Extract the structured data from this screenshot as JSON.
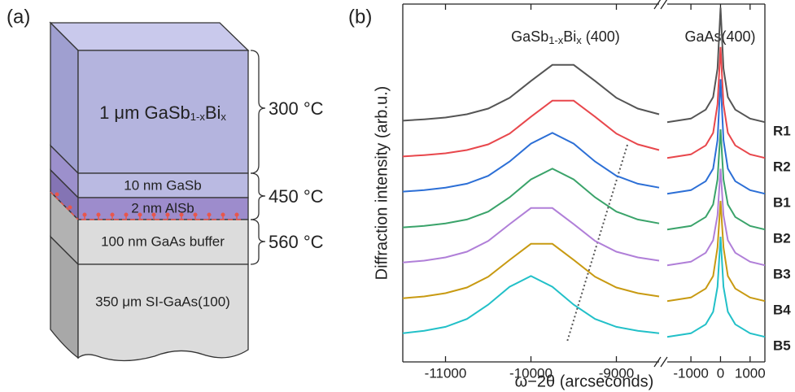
{
  "panel_a": {
    "label": "(a)",
    "gasbbi_layer": [
      "1 μm GaSb",
      "1-x",
      "Bi",
      "x"
    ],
    "gasb_layer": "10 nm GaSb",
    "alsb_layer": "2 nm AlSb",
    "buffer_layer": "100 nm GaAs buffer",
    "substrate": "350 μm SI-GaAs(100)",
    "temperatures": [
      "300 °C",
      "450 °C",
      "560 °C"
    ]
  },
  "chart_data": {
    "type": "line",
    "label": "(b)",
    "ylabel": "Diffraction intensity (arb.u.)",
    "xlabel": "ω−2θ (arcseconds)",
    "annotations": {
      "gasbbi": [
        "GaSb",
        "1-x",
        "Bi",
        "x",
        " (400)"
      ],
      "gaas": "GaAs(400)"
    },
    "x_segments": [
      {
        "xlim": [
          -11500,
          -8500
        ],
        "xticks": [
          -11000,
          -10000,
          -9000
        ]
      },
      {
        "xlim": [
          -1800,
          1500
        ],
        "xticks": [
          -1000,
          0,
          1000
        ]
      }
    ],
    "ylim": [
      0,
      10
    ],
    "x": [
      -11500,
      -11250,
      -11000,
      -10750,
      -10500,
      -10250,
      -10000,
      -9750,
      -9500,
      -9250,
      -9000,
      -8750,
      -8500,
      null,
      -1800,
      -1000,
      -500,
      -250,
      -100,
      0,
      100,
      250,
      500,
      1000,
      1500
    ],
    "series": [
      {
        "name": "R1",
        "color": "#555555",
        "values": [
          6.74,
          6.78,
          6.83,
          6.92,
          7.08,
          7.38,
          7.85,
          8.3,
          8.3,
          7.85,
          7.38,
          7.08,
          6.92,
          null,
          6.7,
          6.8,
          7.05,
          7.4,
          8.2,
          9.9,
          8.2,
          7.4,
          7.05,
          6.8,
          6.7
        ]
      },
      {
        "name": "R2",
        "color": "#e8474c",
        "values": [
          5.74,
          5.78,
          5.83,
          5.92,
          6.08,
          6.38,
          6.85,
          7.3,
          7.3,
          6.85,
          6.38,
          6.08,
          5.92,
          null,
          5.7,
          5.8,
          6.05,
          6.4,
          7.2,
          8.8,
          7.2,
          6.4,
          6.05,
          5.8,
          5.7
        ]
      },
      {
        "name": "B1",
        "color": "#2c6fd6",
        "values": [
          4.76,
          4.8,
          4.87,
          4.98,
          5.2,
          5.6,
          6.1,
          6.4,
          6.1,
          5.6,
          5.2,
          4.98,
          4.87,
          null,
          4.7,
          4.8,
          5.05,
          5.4,
          6.2,
          7.9,
          6.2,
          5.4,
          5.05,
          4.8,
          4.7
        ]
      },
      {
        "name": "B2",
        "color": "#3aa36a",
        "values": [
          3.76,
          3.8,
          3.87,
          3.98,
          4.2,
          4.6,
          5.1,
          5.4,
          5.1,
          4.6,
          4.2,
          3.98,
          3.87,
          null,
          3.7,
          3.8,
          4.05,
          4.4,
          5.1,
          6.5,
          5.1,
          4.4,
          4.05,
          3.8,
          3.7
        ]
      },
      {
        "name": "B3",
        "color": "#b07fd8",
        "values": [
          2.78,
          2.83,
          2.92,
          3.08,
          3.38,
          3.85,
          4.3,
          4.3,
          3.85,
          3.38,
          3.08,
          2.92,
          2.83,
          null,
          2.7,
          2.8,
          3.05,
          3.4,
          4.1,
          5.4,
          4.1,
          3.4,
          3.05,
          2.8,
          2.7
        ]
      },
      {
        "name": "B4",
        "color": "#c89a12",
        "values": [
          1.78,
          1.83,
          1.92,
          2.08,
          2.38,
          2.85,
          3.3,
          3.3,
          2.85,
          2.38,
          2.08,
          1.92,
          1.83,
          null,
          1.7,
          1.8,
          2.05,
          2.4,
          3.2,
          4.5,
          3.2,
          2.4,
          2.05,
          1.8,
          1.7
        ]
      },
      {
        "name": "B5",
        "color": "#22c0c8",
        "values": [
          0.8,
          0.87,
          0.98,
          1.2,
          1.6,
          2.1,
          2.4,
          2.1,
          1.6,
          1.2,
          0.98,
          0.87,
          0.8,
          null,
          0.7,
          0.8,
          1.05,
          1.4,
          2.1,
          3.5,
          2.1,
          1.4,
          1.05,
          0.8,
          0.7
        ]
      }
    ]
  }
}
